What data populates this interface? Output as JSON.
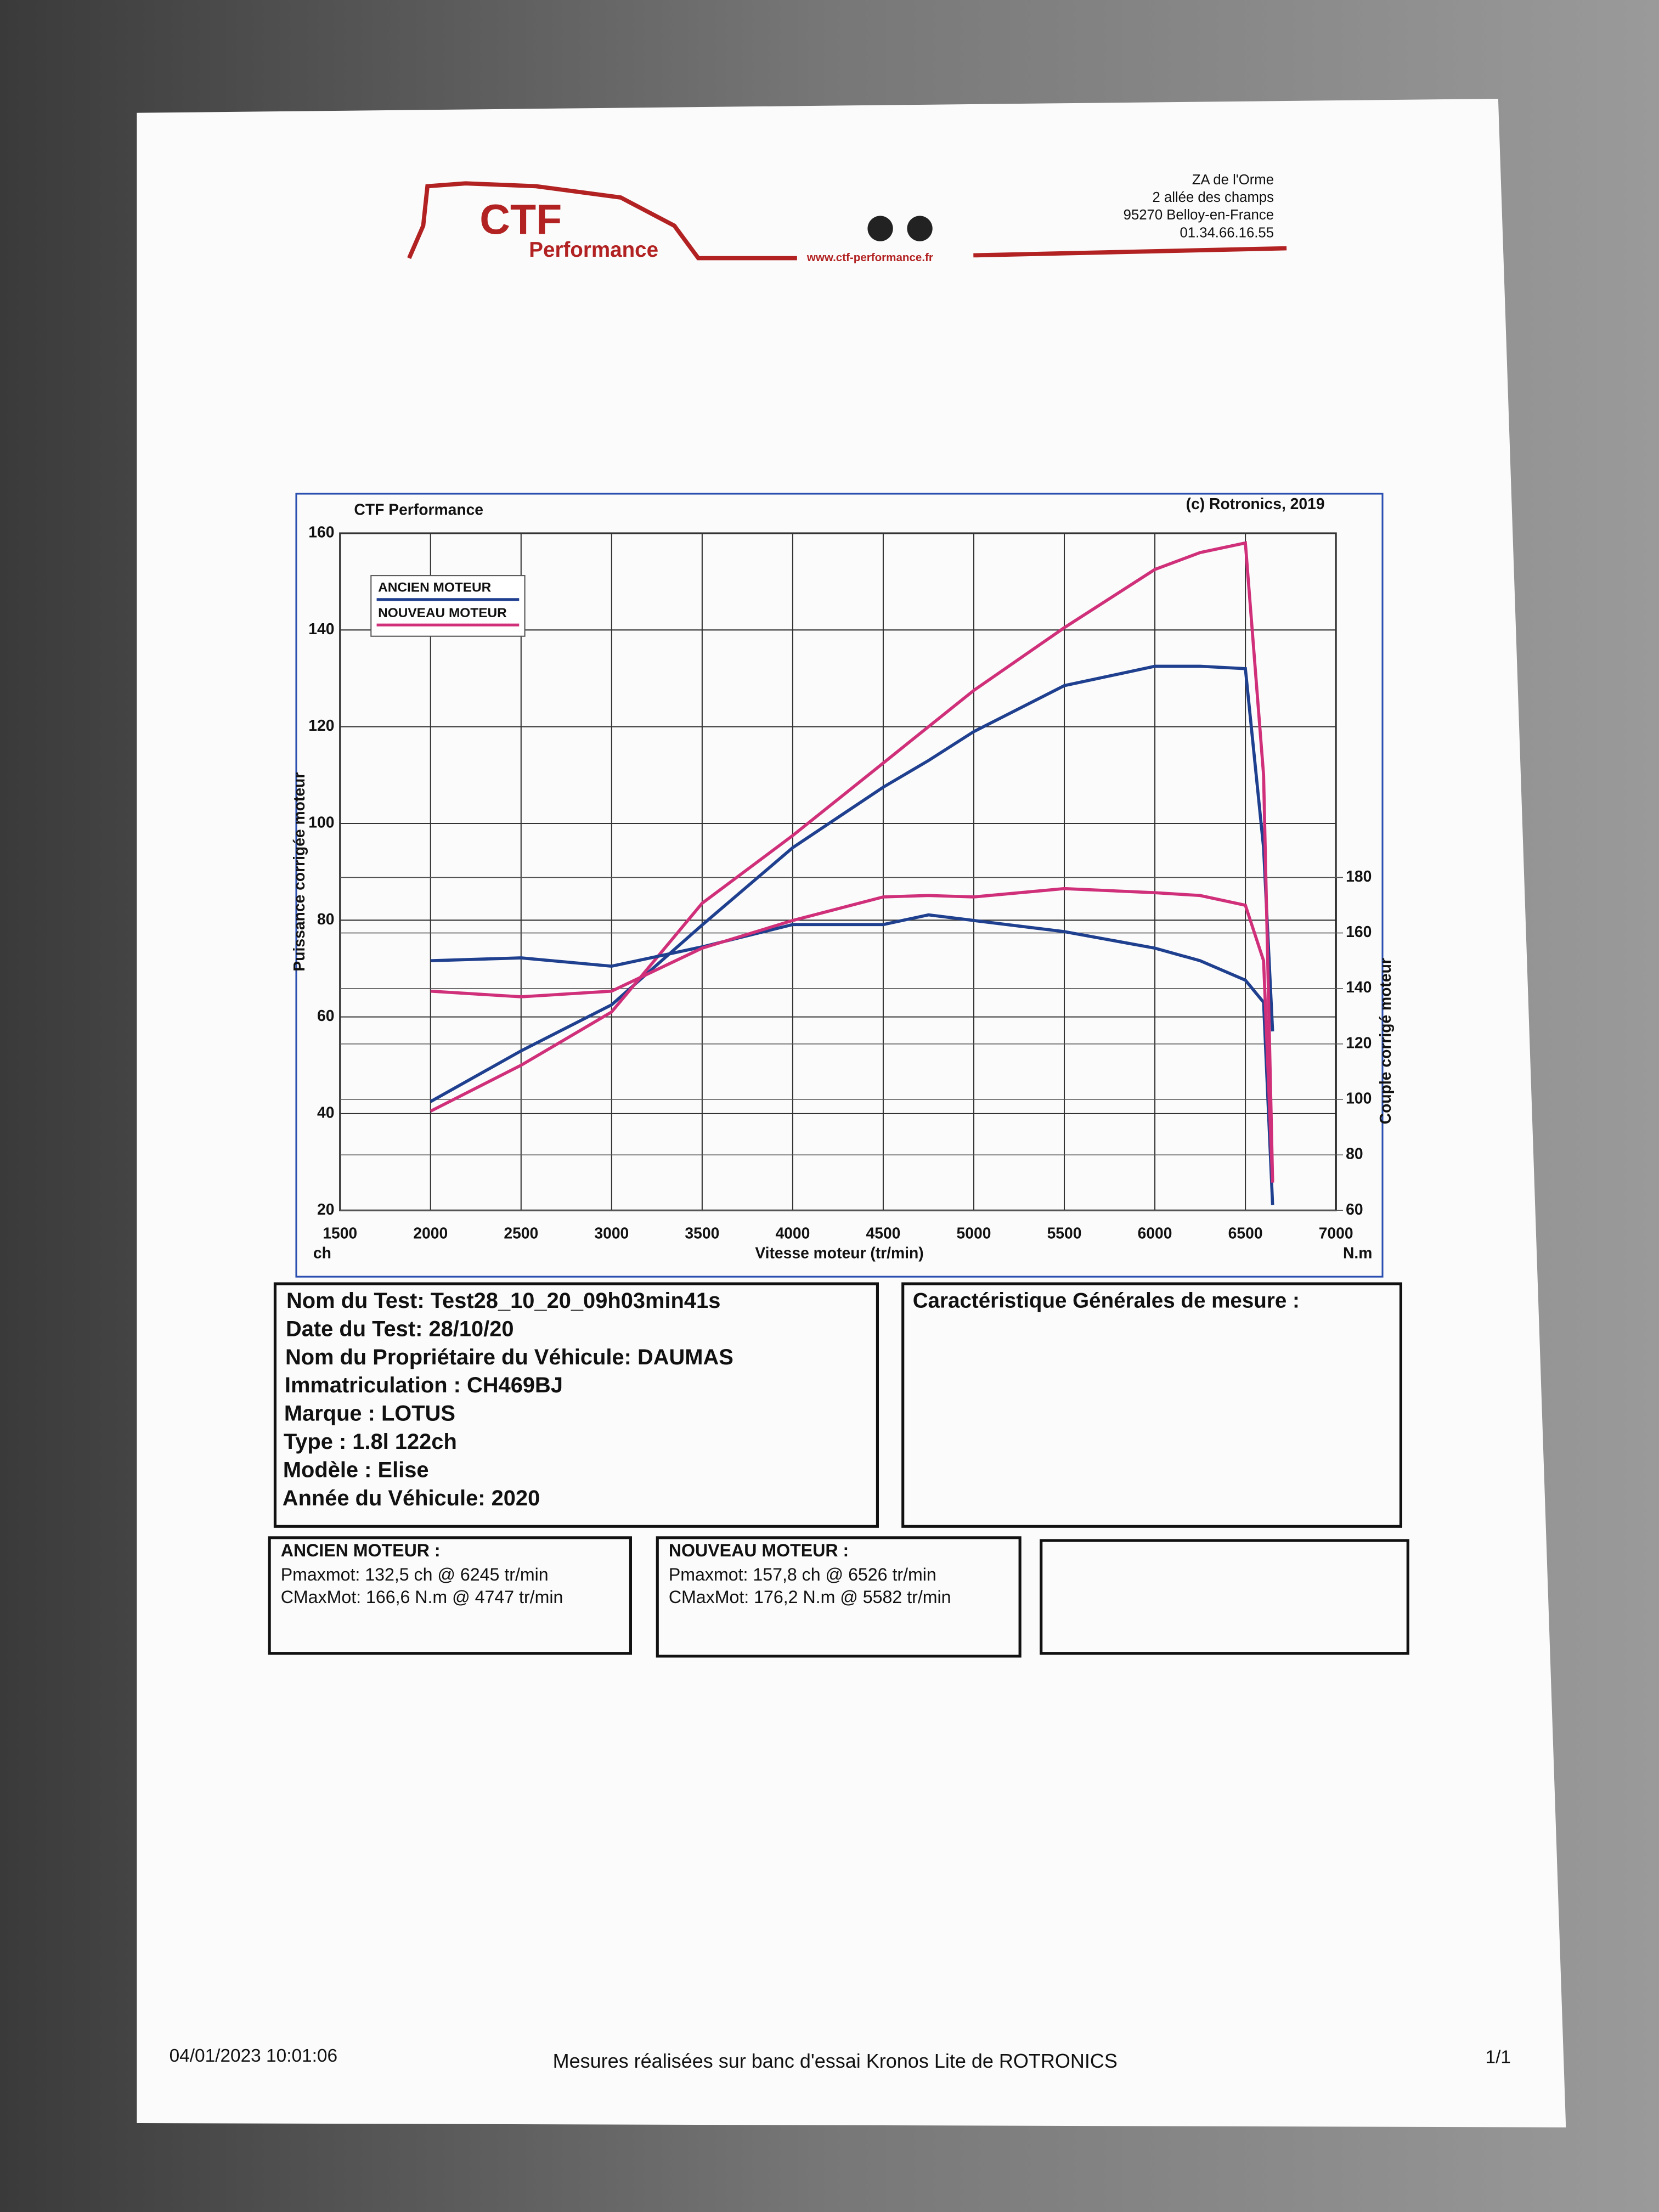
{
  "header": {
    "logo_main": "CTF",
    "logo_sub": "Performance",
    "website": "www.ctf-performance.fr",
    "address": [
      "ZA de l'Orme",
      "2 allée des champs",
      "95270 Belloy-en-France",
      "01.34.66.16.55"
    ]
  },
  "chart_data": {
    "type": "line",
    "title": "CTF Performance",
    "copyright": "(c) Rotronics, 2019",
    "x_label": "Vitesse moteur (tr/min)",
    "y_label": "Puissance corrigée moteur",
    "y2_label": "Couple corrigé moteur",
    "y_unit": "ch",
    "y2_unit": "N.m",
    "x": [
      2000,
      2500,
      3000,
      3500,
      4000,
      4500,
      4750,
      5000,
      5500,
      6000,
      6250,
      6500,
      6600,
      6650
    ],
    "xlim": [
      1500,
      7000
    ],
    "xticks": [
      1500,
      2000,
      2500,
      3000,
      3500,
      4000,
      4500,
      5000,
      5500,
      6000,
      6500,
      7000
    ],
    "ylim": [
      20,
      160
    ],
    "yticks": [
      20,
      40,
      60,
      80,
      100,
      120,
      140,
      160
    ],
    "y2lim": [
      60,
      180
    ],
    "y2ticks": [
      60,
      80,
      100,
      120,
      140,
      160,
      180
    ],
    "grid": true,
    "legend": "top-left",
    "series": [
      {
        "name": "ANCIEN MOTEUR",
        "color": "#1f3f8f",
        "values": [
          42.5,
          53,
          62.5,
          79,
          95,
          107.5,
          113,
          119,
          128.5,
          132.5,
          132.5,
          132,
          95,
          57
        ]
      },
      {
        "name": "NOUVEAU MOTEUR",
        "color": "#d0307a",
        "values": [
          40.5,
          50,
          61,
          83.5,
          97.5,
          112.5,
          120,
          127.5,
          140.5,
          152.5,
          156,
          158,
          110,
          26
        ]
      },
      {
        "color": "#1f3f8f",
        "axis": "y2",
        "values": [
          150,
          151,
          148,
          155,
          163,
          163,
          166.5,
          164.5,
          160.5,
          154.5,
          150,
          143,
          135,
          62
        ]
      },
      {
        "color": "#d0307a",
        "axis": "y2",
        "values": [
          139,
          137,
          139,
          154.5,
          164.5,
          173,
          173.5,
          173,
          176,
          174.5,
          173.5,
          170,
          150,
          70
        ]
      }
    ]
  },
  "test_info": {
    "lines": [
      "Nom du Test: Test28_10_20_09h03min41s",
      "Date du Test: 28/10/20",
      "Nom du Propriétaire du Véhicule: DAUMAS",
      "Immatriculation  : CH469BJ",
      "Marque  : LOTUS",
      "Type  : 1.8l 122ch",
      "Modèle  : Elise",
      "Année du Véhicule: 2020"
    ],
    "characteristics_title": "Caractéristique Générales de mesure :"
  },
  "results": [
    {
      "title": "ANCIEN MOTEUR :",
      "lines": [
        "Pmaxmot: 132,5 ch @ 6245 tr/min",
        "CMaxMot: 166,6 N.m @ 4747 tr/min"
      ]
    },
    {
      "title": "NOUVEAU MOTEUR :",
      "lines": [
        "Pmaxmot: 157,8 ch @ 6526 tr/min",
        "CMaxMot: 176,2 N.m @ 5582 tr/min"
      ]
    }
  ],
  "footer": {
    "timestamp": "04/01/2023 10:01:06",
    "note": "Mesures réalisées sur banc d'essai Kronos Lite de ROTRONICS",
    "page": "1/1"
  }
}
